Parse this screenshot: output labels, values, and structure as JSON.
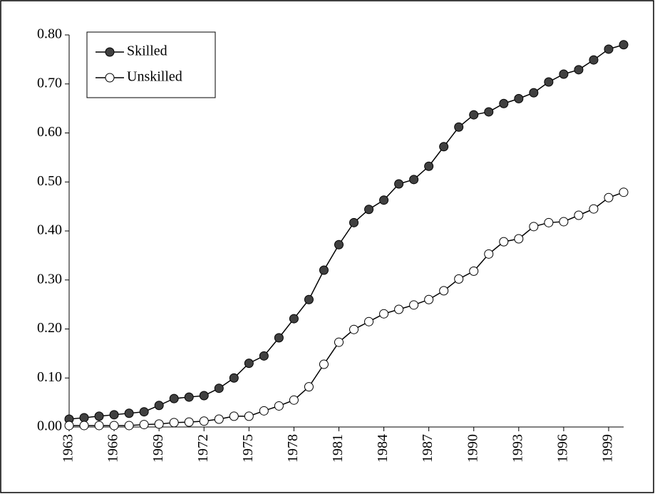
{
  "chart_data": {
    "type": "line",
    "x": [
      1963,
      1964,
      1965,
      1966,
      1967,
      1968,
      1969,
      1970,
      1971,
      1972,
      1973,
      1974,
      1975,
      1976,
      1977,
      1978,
      1979,
      1980,
      1981,
      1982,
      1983,
      1984,
      1985,
      1986,
      1987,
      1988,
      1989,
      1990,
      1991,
      1992,
      1993,
      1994,
      1995,
      1996,
      1997,
      1998,
      1999,
      2000
    ],
    "series": [
      {
        "name": "Skilled",
        "color": "#404040",
        "values": [
          0.016,
          0.019,
          0.022,
          0.025,
          0.028,
          0.031,
          0.044,
          0.058,
          0.061,
          0.064,
          0.079,
          0.1,
          0.13,
          0.145,
          0.182,
          0.221,
          0.26,
          0.32,
          0.372,
          0.417,
          0.444,
          0.463,
          0.496,
          0.505,
          0.532,
          0.572,
          0.612,
          0.637,
          0.643,
          0.66,
          0.67,
          0.682,
          0.704,
          0.72,
          0.729,
          0.749,
          0.771,
          0.78
        ]
      },
      {
        "name": "Unskilled",
        "color": "#ffffff",
        "values": [
          0.003,
          0.003,
          0.003,
          0.003,
          0.003,
          0.005,
          0.006,
          0.009,
          0.01,
          0.012,
          0.016,
          0.022,
          0.022,
          0.033,
          0.043,
          0.055,
          0.082,
          0.128,
          0.173,
          0.199,
          0.215,
          0.231,
          0.24,
          0.249,
          0.26,
          0.278,
          0.302,
          0.318,
          0.353,
          0.378,
          0.384,
          0.409,
          0.417,
          0.419,
          0.432,
          0.445,
          0.468,
          0.479
        ]
      }
    ],
    "xlim": [
      1963,
      2000
    ],
    "xticks": [
      1963,
      1966,
      1969,
      1972,
      1975,
      1978,
      1981,
      1984,
      1987,
      1990,
      1993,
      1996,
      1999
    ],
    "ylim": [
      0,
      0.8
    ],
    "yticks": [
      {
        "value": 0,
        "label": "0.00"
      },
      {
        "value": 0.1,
        "label": "0.10"
      },
      {
        "value": 0.2,
        "label": "0.20"
      },
      {
        "value": 0.3,
        "label": "0.30"
      },
      {
        "value": 0.4,
        "label": "0.40"
      },
      {
        "value": 0.5,
        "label": "0.50"
      },
      {
        "value": 0.6,
        "label": "0.60"
      },
      {
        "value": 0.7,
        "label": "0.70"
      },
      {
        "value": 0.8,
        "label": "0.80"
      }
    ],
    "legend": "top-left"
  }
}
